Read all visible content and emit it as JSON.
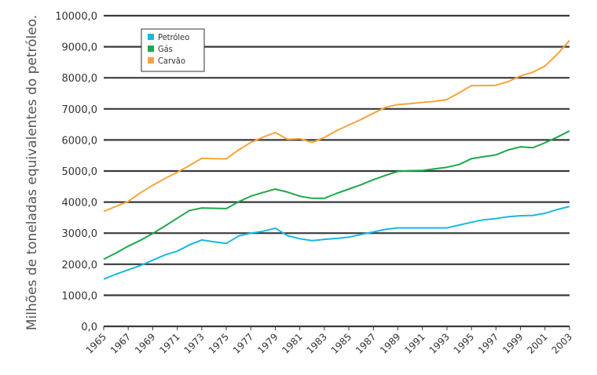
{
  "chart_data": {
    "type": "line",
    "title": "",
    "xlabel": "",
    "ylabel": "Milhões de toneladas equivalentes do petróleo.",
    "ylim": [
      0,
      10000
    ],
    "yticks": [
      "0,0",
      "1000,0",
      "2000,0",
      "3000,0",
      "4000,0",
      "5000,0",
      "6000,0",
      "7000,0",
      "8000,0",
      "9000,0",
      "10000,0"
    ],
    "xlim": [
      1965,
      2003
    ],
    "xticks": [
      "1965",
      "1967",
      "1969",
      "1971",
      "1973",
      "1975",
      "1977",
      "1979",
      "1981",
      "1983",
      "1985",
      "1987",
      "1989",
      "1991",
      "1993",
      "1995",
      "1997",
      "1999",
      "2001",
      "2003"
    ],
    "grid": "horizontal",
    "legend_position": "top-left",
    "x": [
      1965,
      1966,
      1967,
      1968,
      1969,
      1970,
      1971,
      1972,
      1973,
      1974,
      1975,
      1976,
      1977,
      1978,
      1979,
      1980,
      1981,
      1982,
      1983,
      1984,
      1985,
      1986,
      1987,
      1988,
      1989,
      1990,
      1991,
      1992,
      1993,
      1994,
      1995,
      1996,
      1997,
      1998,
      1999,
      2000,
      2001,
      2002,
      2003
    ],
    "series": [
      {
        "name": "Petróleo",
        "color": "#1ab8e0",
        "values": [
          1520,
          1680,
          1820,
          1960,
          2130,
          2300,
          2420,
          2620,
          2780,
          2720,
          2670,
          2910,
          3000,
          3060,
          3160,
          2920,
          2820,
          2760,
          2800,
          2830,
          2870,
          2960,
          3040,
          3120,
          3170,
          3170,
          3170,
          3170,
          3170,
          3260,
          3350,
          3430,
          3470,
          3530,
          3560,
          3570,
          3640,
          3760,
          3860
        ]
      },
      {
        "name": "Gás",
        "color": "#1ea84c",
        "values": [
          2160,
          2360,
          2580,
          2770,
          2990,
          3230,
          3480,
          3730,
          3810,
          3800,
          3790,
          4010,
          4190,
          4310,
          4420,
          4320,
          4190,
          4120,
          4120,
          4280,
          4420,
          4560,
          4720,
          4860,
          4990,
          5010,
          5020,
          5070,
          5120,
          5210,
          5400,
          5460,
          5520,
          5680,
          5780,
          5750,
          5910,
          6090,
          6290
        ]
      },
      {
        "name": "Carvão",
        "color": "#f7a43a",
        "values": [
          3700,
          3860,
          4020,
          4300,
          4540,
          4760,
          4960,
          5180,
          5410,
          5400,
          5390,
          5680,
          5920,
          6090,
          6240,
          6020,
          6040,
          5920,
          6080,
          6300,
          6480,
          6660,
          6860,
          7050,
          7140,
          7170,
          7210,
          7240,
          7300,
          7520,
          7750,
          7750,
          7760,
          7880,
          8060,
          8180,
          8380,
          8760,
          9200
        ]
      }
    ]
  }
}
